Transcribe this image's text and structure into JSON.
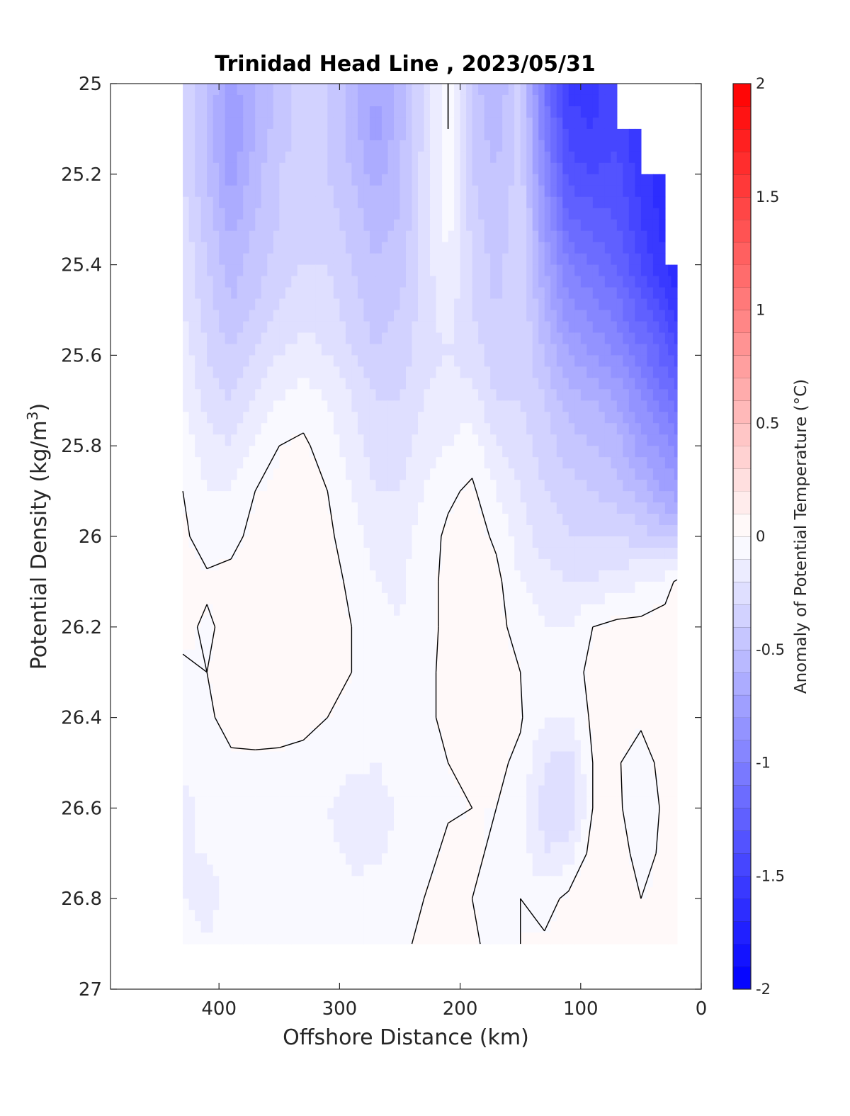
{
  "chart_data": {
    "type": "heatmap",
    "title": "Trinidad Head Line , 2023/05/31",
    "xlabel": "Offshore Distance (km)",
    "ylabel": "Potential Density (kg/m³)",
    "ylabel_main": "Potential Density (kg/m",
    "ylabel_sup": "3",
    "ylabel_end": ")",
    "colorbar_label": "Anomaly of Potential Temperature (°C)",
    "xlim": [
      490,
      0
    ],
    "ylim": [
      25,
      27
    ],
    "x_reversed": true,
    "y_reversed": true,
    "x_ticks": [
      400,
      300,
      200,
      100,
      0
    ],
    "y_ticks": [
      25,
      25.2,
      25.4,
      25.6,
      25.8,
      26,
      26.2,
      26.4,
      26.6,
      26.8,
      27
    ],
    "colorbar_range": [
      -2,
      2
    ],
    "colorbar_step": 0.1,
    "colorbar_ticks": [
      -2,
      -1.5,
      -1,
      -0.5,
      0,
      0.5,
      1,
      1.5,
      2
    ],
    "colormap": [
      "#0000ff",
      "#ffffff",
      "#ff0000"
    ],
    "zero_contour_color": "#000000",
    "grid": false,
    "x": [
      430,
      410,
      390,
      370,
      350,
      330,
      310,
      290,
      270,
      250,
      230,
      210,
      190,
      170,
      150,
      130,
      110,
      90,
      70,
      50,
      30,
      20
    ],
    "y": [
      25.0,
      25.1,
      25.2,
      25.3,
      25.4,
      25.5,
      25.6,
      25.7,
      25.8,
      25.9,
      26.0,
      26.1,
      26.2,
      26.3,
      26.4,
      26.5,
      26.6,
      26.7,
      26.8,
      26.9
    ],
    "z": [
      [
        -0.3,
        -0.5,
        -0.75,
        -0.6,
        -0.45,
        -0.35,
        -0.4,
        -0.55,
        -0.7,
        -0.55,
        -0.3,
        0.0,
        -0.45,
        -0.6,
        -0.35,
        -1.1,
        -1.55,
        -1.55,
        -1.4,
        null,
        null,
        null
      ],
      [
        -0.3,
        -0.5,
        -0.8,
        -0.6,
        -0.45,
        -0.35,
        -0.4,
        -0.55,
        -0.75,
        -0.55,
        -0.3,
        0.0,
        -0.45,
        -0.55,
        -0.35,
        -1.0,
        -1.45,
        -1.5,
        -1.45,
        -1.6,
        null,
        null
      ],
      [
        -0.3,
        -0.5,
        -0.75,
        -0.55,
        -0.4,
        -0.35,
        -0.4,
        -0.5,
        -0.65,
        -0.5,
        -0.25,
        -0.05,
        -0.4,
        -0.5,
        -0.35,
        -0.9,
        -1.35,
        -1.4,
        -1.35,
        -1.55,
        -1.7,
        null
      ],
      [
        -0.25,
        -0.45,
        -0.65,
        -0.5,
        -0.4,
        -0.3,
        -0.35,
        -0.45,
        -0.55,
        -0.5,
        -0.25,
        -0.05,
        -0.35,
        -0.5,
        -0.3,
        -0.8,
        -1.2,
        -1.25,
        -1.3,
        -1.5,
        -1.65,
        null
      ],
      [
        -0.2,
        -0.4,
        -0.55,
        -0.45,
        -0.35,
        -0.3,
        -0.3,
        -0.4,
        -0.5,
        -0.45,
        -0.25,
        -0.1,
        -0.3,
        -0.45,
        -0.3,
        -0.7,
        -1.0,
        -1.1,
        -1.2,
        -1.4,
        -1.6,
        -1.7
      ],
      [
        -0.2,
        -0.35,
        -0.5,
        -0.4,
        -0.3,
        -0.25,
        -0.25,
        -0.35,
        -0.45,
        -0.4,
        -0.25,
        -0.15,
        -0.3,
        -0.4,
        -0.3,
        -0.6,
        -0.85,
        -0.95,
        -1.05,
        -1.25,
        -1.45,
        -1.55
      ],
      [
        -0.15,
        -0.3,
        -0.4,
        -0.3,
        -0.2,
        -0.15,
        -0.2,
        -0.3,
        -0.4,
        -0.35,
        -0.25,
        -0.2,
        -0.25,
        -0.35,
        -0.3,
        -0.5,
        -0.7,
        -0.8,
        -0.9,
        -1.05,
        -1.25,
        -1.35
      ],
      [
        -0.1,
        -0.25,
        -0.3,
        -0.2,
        -0.1,
        -0.05,
        -0.1,
        -0.2,
        -0.3,
        -0.3,
        -0.2,
        -0.15,
        -0.15,
        -0.3,
        -0.3,
        -0.4,
        -0.55,
        -0.6,
        -0.7,
        -0.9,
        -1.05,
        -1.15
      ],
      [
        -0.05,
        -0.15,
        -0.2,
        -0.1,
        0.0,
        0.02,
        -0.05,
        -0.15,
        -0.25,
        -0.25,
        -0.15,
        -0.1,
        -0.05,
        -0.2,
        -0.25,
        -0.35,
        -0.45,
        -0.5,
        -0.55,
        -0.75,
        -0.85,
        -0.95
      ],
      [
        0.0,
        -0.1,
        -0.1,
        0.0,
        0.02,
        0.05,
        0.0,
        -0.1,
        -0.2,
        -0.2,
        -0.1,
        -0.02,
        0.02,
        -0.1,
        -0.2,
        -0.3,
        -0.35,
        -0.4,
        -0.45,
        -0.55,
        -0.7,
        -0.75
      ],
      [
        0.02,
        -0.05,
        -0.02,
        0.02,
        0.05,
        0.08,
        0.02,
        -0.05,
        -0.15,
        -0.15,
        -0.05,
        0.02,
        0.05,
        -0.02,
        -0.15,
        -0.25,
        -0.3,
        -0.3,
        -0.3,
        -0.35,
        -0.45,
        -0.45
      ],
      [
        0.05,
        0.02,
        0.02,
        0.05,
        0.07,
        0.07,
        0.04,
        -0.02,
        -0.1,
        -0.12,
        -0.03,
        0.02,
        0.07,
        0.03,
        -0.1,
        -0.15,
        -0.2,
        -0.2,
        -0.15,
        -0.1,
        -0.05,
        0.02
      ],
      [
        0.03,
        -0.02,
        0.04,
        0.06,
        0.06,
        0.06,
        0.04,
        0.0,
        -0.05,
        -0.1,
        -0.03,
        0.02,
        0.08,
        0.04,
        -0.05,
        -0.1,
        -0.1,
        0.0,
        0.03,
        0.03,
        0.05,
        0.07
      ],
      [
        -0.02,
        0.0,
        0.05,
        0.06,
        0.06,
        0.06,
        0.03,
        0.0,
        -0.03,
        -0.05,
        -0.02,
        0.02,
        0.06,
        0.05,
        0.0,
        -0.05,
        -0.05,
        0.03,
        0.05,
        0.05,
        0.07,
        0.08
      ],
      [
        -0.05,
        -0.02,
        0.04,
        0.05,
        0.04,
        0.03,
        0.0,
        -0.03,
        -0.05,
        -0.04,
        -0.01,
        0.01,
        0.04,
        0.05,
        0.01,
        -0.1,
        -0.1,
        0.02,
        0.04,
        0.02,
        0.05,
        0.08
      ],
      [
        -0.08,
        -0.05,
        -0.02,
        -0.02,
        -0.02,
        -0.03,
        -0.05,
        -0.08,
        -0.1,
        -0.06,
        -0.02,
        0.0,
        0.02,
        0.02,
        -0.02,
        -0.2,
        -0.25,
        0.0,
        0.01,
        -0.05,
        0.04,
        0.06
      ],
      [
        -0.12,
        -0.08,
        -0.08,
        -0.08,
        -0.06,
        -0.08,
        -0.1,
        -0.15,
        -0.15,
        -0.08,
        -0.03,
        -0.01,
        0.0,
        0.0,
        -0.05,
        -0.25,
        -0.3,
        0.0,
        0.03,
        -0.1,
        0.03,
        0.05
      ],
      [
        -0.1,
        -0.1,
        -0.08,
        -0.06,
        -0.04,
        -0.05,
        -0.08,
        -0.12,
        -0.12,
        -0.08,
        -0.03,
        0.02,
        0.02,
        -0.02,
        -0.05,
        -0.2,
        -0.15,
        0.05,
        0.06,
        -0.05,
        0.03,
        0.04
      ],
      [
        -0.1,
        -0.12,
        -0.08,
        -0.05,
        -0.03,
        -0.02,
        -0.04,
        -0.08,
        -0.05,
        -0.02,
        0.0,
        0.04,
        0.0,
        -0.05,
        0.0,
        -0.05,
        0.03,
        0.1,
        0.07,
        0.0,
        0.02,
        0.02
      ],
      [
        -0.08,
        -0.1,
        -0.06,
        -0.03,
        -0.02,
        -0.02,
        -0.03,
        -0.04,
        -0.02,
        -0.01,
        0.01,
        0.05,
        0.02,
        -0.04,
        0.0,
        0.02,
        0.05,
        0.1,
        0.06,
        0.01,
        0.01,
        0.01
      ]
    ]
  }
}
